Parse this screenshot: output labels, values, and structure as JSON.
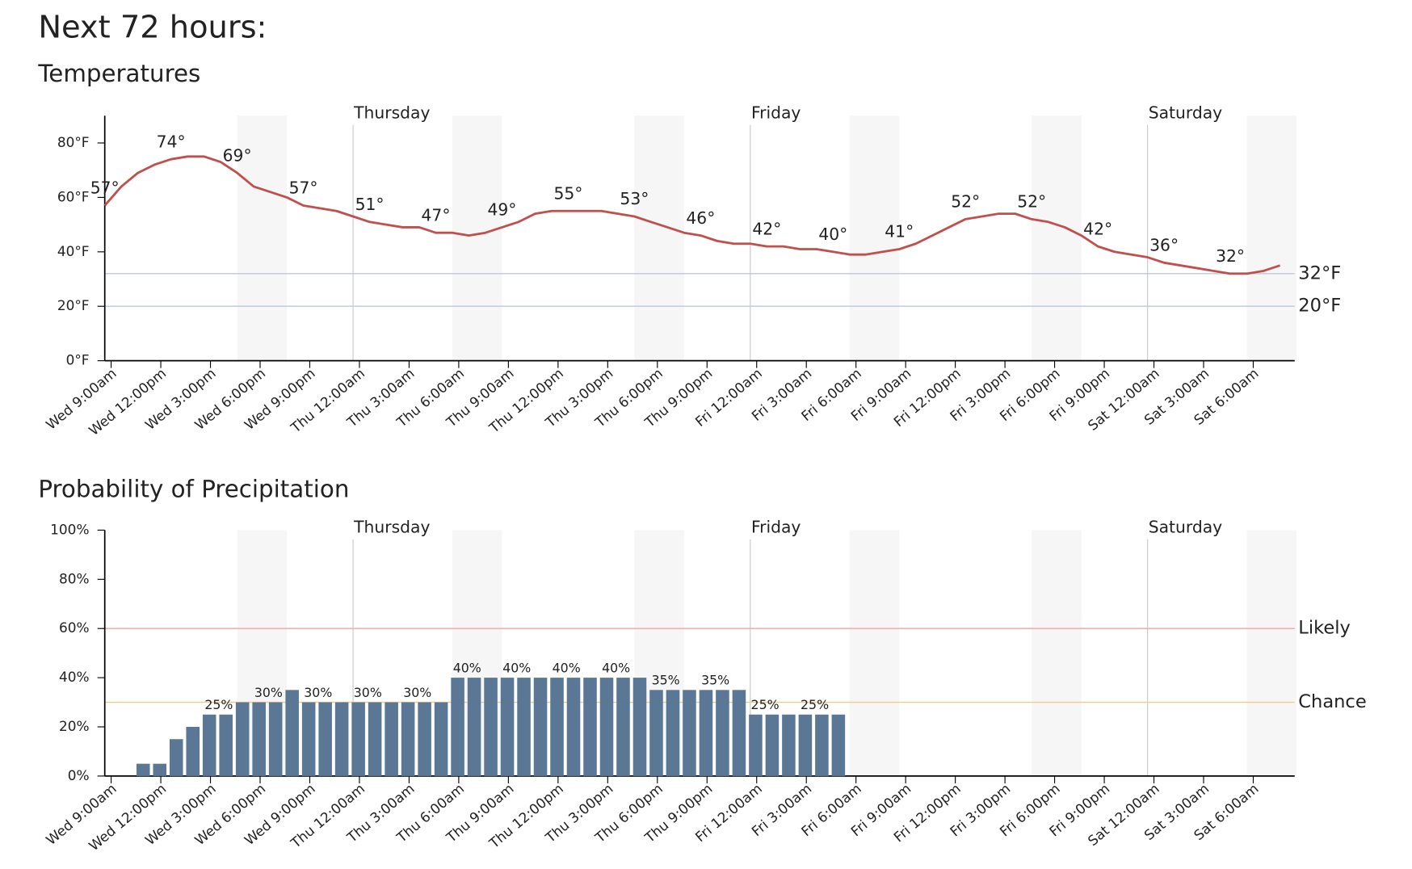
{
  "title": "Next 72 hours:",
  "chart_data": [
    {
      "type": "line",
      "title": "Temperatures",
      "color": "#c0504d",
      "categories": [
        "Wed 9:00am",
        null,
        null,
        "Wed 12:00pm",
        null,
        null,
        "Wed 3:00pm",
        null,
        null,
        "Wed 6:00pm",
        null,
        null,
        "Wed 9:00pm",
        null,
        null,
        "Thu 12:00am",
        null,
        null,
        "Thu 3:00am",
        null,
        null,
        "Thu 6:00am",
        null,
        null,
        "Thu 9:00am",
        null,
        null,
        "Thu 12:00pm",
        null,
        null,
        "Thu 3:00pm",
        null,
        null,
        "Thu 6:00pm",
        null,
        null,
        "Thu 9:00pm",
        null,
        null,
        "Fri 12:00am",
        null,
        null,
        "Fri 3:00am",
        null,
        null,
        "Fri 6:00am",
        null,
        null,
        "Fri 9:00am",
        null,
        null,
        "Fri 12:00pm",
        null,
        null,
        "Fri 3:00pm",
        null,
        null,
        "Fri 6:00pm",
        null,
        null,
        "Fri 9:00pm",
        null,
        null,
        "Sat 12:00am",
        null,
        null,
        "Sat 3:00am",
        null,
        null,
        "Sat 6:00am",
        null,
        null
      ],
      "values": [
        57,
        64,
        69,
        72,
        74,
        75,
        75,
        73,
        69,
        64,
        62,
        60,
        57,
        56,
        55,
        53,
        51,
        50,
        49,
        49,
        47,
        47,
        46,
        47,
        49,
        51,
        54,
        55,
        55,
        55,
        55,
        54,
        53,
        51,
        49,
        47,
        46,
        44,
        43,
        43,
        42,
        42,
        41,
        41,
        40,
        39,
        39,
        40,
        41,
        43,
        46,
        49,
        52,
        53,
        54,
        54,
        52,
        51,
        49,
        46,
        42,
        40,
        39,
        38,
        36,
        35,
        34,
        33,
        32,
        32,
        33,
        35
      ],
      "value_labels": [
        "57°",
        null,
        null,
        null,
        "74°",
        null,
        null,
        null,
        "69°",
        null,
        null,
        null,
        "57°",
        null,
        null,
        null,
        "51°",
        null,
        null,
        null,
        "47°",
        null,
        null,
        null,
        "49°",
        null,
        null,
        null,
        "55°",
        null,
        null,
        null,
        "53°",
        null,
        null,
        null,
        "46°",
        null,
        null,
        null,
        "42°",
        null,
        null,
        null,
        "40°",
        null,
        null,
        null,
        "41°",
        null,
        null,
        null,
        "52°",
        null,
        null,
        null,
        "52°",
        null,
        null,
        null,
        "42°",
        null,
        null,
        null,
        "36°",
        null,
        null,
        null,
        "32°",
        null,
        null,
        null
      ],
      "ylim": [
        0,
        90
      ],
      "yticks": [
        {
          "value": 0,
          "label": "0°F"
        },
        {
          "value": 20,
          "label": "20°F"
        },
        {
          "value": 40,
          "label": "40°F"
        },
        {
          "value": 60,
          "label": "60°F"
        },
        {
          "value": 80,
          "label": "80°F"
        }
      ],
      "reference_lines": [
        {
          "value": 32,
          "label": "32°F",
          "color": "#b8cade",
          "label_color": "#1f2d3d"
        },
        {
          "value": 20,
          "label": "20°F",
          "color": "#b8cade",
          "label_color": "#1f2d3d"
        }
      ],
      "days": [
        {
          "label": "Thursday",
          "index": 15
        },
        {
          "label": "Friday",
          "index": 39
        },
        {
          "label": "Saturday",
          "index": 63
        }
      ],
      "shaded": [
        [
          8,
          11
        ],
        [
          21,
          24
        ],
        [
          32,
          35
        ],
        [
          45,
          48
        ],
        [
          56,
          59
        ],
        [
          69,
          72
        ]
      ]
    },
    {
      "type": "bar",
      "title": "Probability of Precipitation",
      "color": "#5a7896",
      "categories": [
        "Wed 9:00am",
        null,
        null,
        "Wed 12:00pm",
        null,
        null,
        "Wed 3:00pm",
        null,
        null,
        "Wed 6:00pm",
        null,
        null,
        "Wed 9:00pm",
        null,
        null,
        "Thu 12:00am",
        null,
        null,
        "Thu 3:00am",
        null,
        null,
        "Thu 6:00am",
        null,
        null,
        "Thu 9:00am",
        null,
        null,
        "Thu 12:00pm",
        null,
        null,
        "Thu 3:00pm",
        null,
        null,
        "Thu 6:00pm",
        null,
        null,
        "Thu 9:00pm",
        null,
        null,
        "Fri 12:00am",
        null,
        null,
        "Fri 3:00am",
        null,
        null,
        "Fri 6:00am",
        null,
        null,
        "Fri 9:00am",
        null,
        null,
        "Fri 12:00pm",
        null,
        null,
        "Fri 3:00pm",
        null,
        null,
        "Fri 6:00pm",
        null,
        null,
        "Fri 9:00pm",
        null,
        null,
        "Sat 12:00am",
        null,
        null,
        "Sat 3:00am",
        null,
        null,
        "Sat 6:00am",
        null,
        null
      ],
      "values": [
        null,
        null,
        5,
        5,
        15,
        20,
        25,
        25,
        30,
        30,
        30,
        35,
        30,
        30,
        30,
        30,
        30,
        30,
        30,
        30,
        30,
        40,
        40,
        40,
        40,
        40,
        40,
        40,
        40,
        40,
        40,
        40,
        40,
        35,
        35,
        35,
        35,
        35,
        35,
        25,
        25,
        25,
        25,
        25,
        25,
        null,
        null,
        null,
        null,
        null,
        null,
        null,
        null,
        null,
        null,
        null,
        null,
        null,
        null,
        null,
        null,
        null,
        null,
        null,
        null,
        null,
        null,
        null,
        null,
        null,
        null,
        null
      ],
      "value_labels": [
        null,
        null,
        null,
        null,
        null,
        null,
        null,
        "25%",
        null,
        null,
        "30%",
        null,
        null,
        "30%",
        null,
        null,
        "30%",
        null,
        null,
        "30%",
        null,
        null,
        "40%",
        null,
        null,
        "40%",
        null,
        null,
        "40%",
        null,
        null,
        "40%",
        null,
        null,
        "35%",
        null,
        null,
        "35%",
        null,
        null,
        "25%",
        null,
        null,
        "25%",
        null,
        null,
        null,
        null,
        null,
        null,
        null,
        null,
        null,
        null,
        null,
        null,
        null,
        null,
        null,
        null,
        null,
        null,
        null,
        null,
        null,
        null,
        null,
        null,
        null,
        null,
        null,
        null
      ],
      "ylim": [
        0,
        100
      ],
      "yticks": [
        {
          "value": 0,
          "label": "0%"
        },
        {
          "value": 20,
          "label": "20%"
        },
        {
          "value": 40,
          "label": "40%"
        },
        {
          "value": 60,
          "label": "60%"
        },
        {
          "value": 80,
          "label": "80%"
        },
        {
          "value": 100,
          "label": "100%"
        }
      ],
      "reference_lines": [
        {
          "value": 60,
          "label": "Likely",
          "color": "#f5a3a3",
          "label_color": "#4a0d0d"
        },
        {
          "value": 30,
          "label": "Chance",
          "color": "#f2c98a",
          "label_color": "#3d2600"
        }
      ],
      "days": [
        {
          "label": "Thursday",
          "index": 15
        },
        {
          "label": "Friday",
          "index": 39
        },
        {
          "label": "Saturday",
          "index": 63
        }
      ],
      "shaded": [
        [
          8,
          11
        ],
        [
          21,
          24
        ],
        [
          32,
          35
        ],
        [
          45,
          48
        ],
        [
          56,
          59
        ],
        [
          69,
          72
        ]
      ]
    }
  ]
}
